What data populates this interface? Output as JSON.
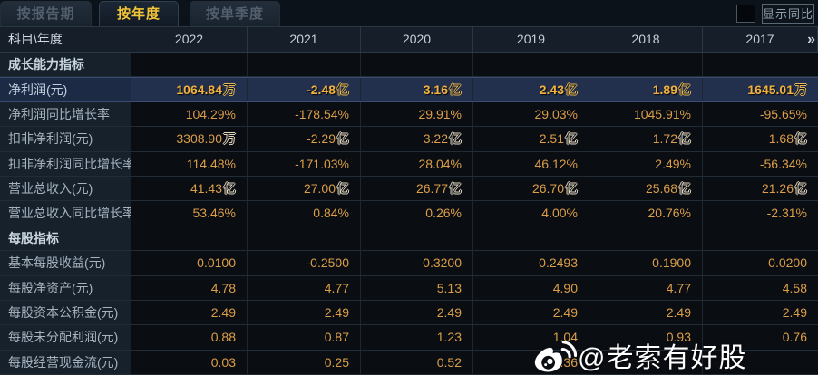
{
  "tabs": [
    {
      "label": "按报告期",
      "active": false
    },
    {
      "label": "按年度",
      "active": true
    },
    {
      "label": "按单季度",
      "active": false
    }
  ],
  "controls": {
    "show_yoy_label": "显示同比",
    "show_yoy_checked": false
  },
  "table": {
    "corner_header": "科目\\年度",
    "year_columns": [
      "2022",
      "2021",
      "2020",
      "2019",
      "2018",
      "2017"
    ],
    "more_icon": "»",
    "rows": [
      {
        "type": "section",
        "label": "成长能力指标",
        "values": [
          "",
          "",
          "",
          "",
          "",
          ""
        ]
      },
      {
        "type": "data",
        "label": "净利润(元)",
        "highlight": true,
        "values": [
          "1064.84万",
          "-2.48亿",
          "3.16亿",
          "2.43亿",
          "1.89亿",
          "1645.01万"
        ]
      },
      {
        "type": "data",
        "label": "净利润同比增长率",
        "values": [
          "104.29%",
          "-178.54%",
          "29.91%",
          "29.03%",
          "1045.91%",
          "-95.65%"
        ]
      },
      {
        "type": "data",
        "label": "扣非净利润(元)",
        "values": [
          "3308.90万",
          "-2.29亿",
          "3.22亿",
          "2.51亿",
          "1.72亿",
          "1.68亿"
        ]
      },
      {
        "type": "data",
        "label": "扣非净利润同比增长率",
        "values": [
          "114.48%",
          "-171.03%",
          "28.04%",
          "46.12%",
          "2.49%",
          "-56.34%"
        ]
      },
      {
        "type": "data",
        "label": "营业总收入(元)",
        "values": [
          "41.43亿",
          "27.00亿",
          "26.77亿",
          "26.70亿",
          "25.68亿",
          "21.26亿"
        ]
      },
      {
        "type": "data",
        "label": "营业总收入同比增长率",
        "values": [
          "53.46%",
          "0.84%",
          "0.26%",
          "4.00%",
          "20.76%",
          "-2.31%"
        ]
      },
      {
        "type": "section",
        "label": "每股指标",
        "values": [
          "",
          "",
          "",
          "",
          "",
          ""
        ]
      },
      {
        "type": "data",
        "label": "基本每股收益(元)",
        "values": [
          "0.0100",
          "-0.2500",
          "0.3200",
          "0.2493",
          "0.1900",
          "0.0200"
        ]
      },
      {
        "type": "data",
        "label": "每股净资产(元)",
        "values": [
          "4.78",
          "4.77",
          "5.13",
          "4.90",
          "4.77",
          "4.58"
        ]
      },
      {
        "type": "data",
        "label": "每股资本公积金(元)",
        "values": [
          "2.49",
          "2.49",
          "2.49",
          "2.49",
          "2.49",
          "2.49"
        ]
      },
      {
        "type": "data",
        "label": "每股未分配利润(元)",
        "values": [
          "0.88",
          "0.87",
          "1.23",
          "1.04",
          "0.93",
          "0.76"
        ]
      },
      {
        "type": "data",
        "label": "每股经营现金流(元)",
        "obscured_by_watermark": true,
        "values": [
          "0.03",
          "0.25",
          "0.52",
          "0.36",
          "",
          ""
        ]
      }
    ]
  },
  "watermark": {
    "icon": "weibo-icon",
    "text": "@老索有好股"
  },
  "colors": {
    "accent_gold": "#f2c437",
    "value_orange": "#dc9e48",
    "highlight_row_bg": "#22304e",
    "label_column_bg": "#16212c",
    "data_cell_bg": "#0a0d12",
    "watermark_text": "#ffffff"
  }
}
